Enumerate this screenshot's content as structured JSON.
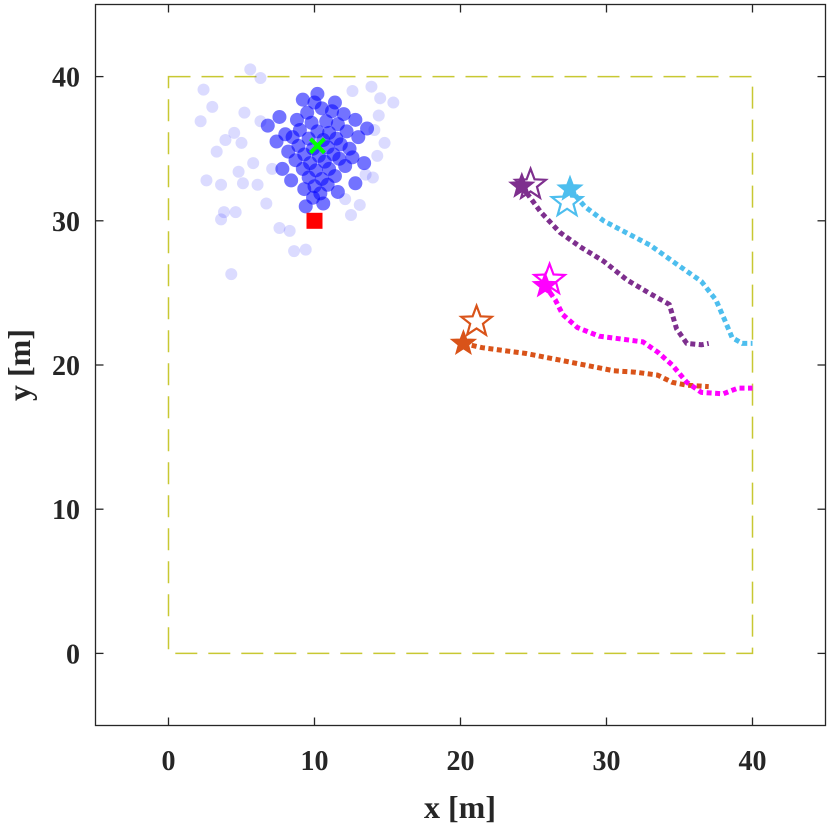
{
  "chart_data": {
    "type": "scatter",
    "xlabel": "x [m]",
    "ylabel": "y [m]",
    "xlim": [
      -5,
      45
    ],
    "ylim": [
      -5,
      45
    ],
    "xticks": [
      0,
      10,
      20,
      30,
      40
    ],
    "yticks": [
      0,
      10,
      20,
      30,
      40
    ],
    "grid": false,
    "boundary": {
      "x": [
        0,
        40
      ],
      "y": [
        0,
        40
      ],
      "color": "#C8C832",
      "style": "dashed"
    },
    "particle_cloud": {
      "color": "#0000FF",
      "center": [
        10.3,
        35.2
      ],
      "dense_points": [
        [
          10.0,
          38.2
        ],
        [
          10.5,
          37.8
        ],
        [
          9.5,
          37.5
        ],
        [
          11.2,
          37.6
        ],
        [
          8.8,
          37.0
        ],
        [
          9.8,
          36.8
        ],
        [
          10.8,
          36.9
        ],
        [
          11.6,
          36.7
        ],
        [
          9.0,
          36.3
        ],
        [
          10.2,
          36.2
        ],
        [
          11.0,
          36.1
        ],
        [
          8.5,
          35.8
        ],
        [
          9.6,
          35.7
        ],
        [
          10.6,
          35.6
        ],
        [
          11.5,
          35.7
        ],
        [
          8.9,
          35.2
        ],
        [
          9.9,
          35.0
        ],
        [
          10.9,
          35.1
        ],
        [
          11.8,
          35.3
        ],
        [
          9.3,
          34.6
        ],
        [
          10.3,
          34.5
        ],
        [
          11.3,
          34.6
        ],
        [
          8.7,
          34.2
        ],
        [
          9.7,
          34.0
        ],
        [
          10.7,
          34.1
        ],
        [
          11.7,
          34.3
        ],
        [
          9.2,
          33.6
        ],
        [
          10.1,
          33.5
        ],
        [
          11.0,
          33.6
        ],
        [
          9.6,
          33.0
        ],
        [
          10.5,
          32.9
        ],
        [
          11.4,
          33.1
        ],
        [
          10.0,
          32.4
        ],
        [
          10.9,
          32.5
        ],
        [
          9.3,
          32.2
        ],
        [
          10.4,
          31.9
        ],
        [
          11.6,
          32.0
        ],
        [
          9.9,
          31.6
        ],
        [
          12.2,
          36.2
        ],
        [
          12.4,
          35.0
        ],
        [
          12.1,
          33.8
        ],
        [
          8.0,
          36.0
        ],
        [
          8.2,
          34.8
        ],
        [
          7.8,
          33.6
        ],
        [
          12.8,
          37.0
        ],
        [
          13.0,
          35.8
        ],
        [
          12.6,
          34.4
        ],
        [
          7.4,
          35.5
        ],
        [
          7.6,
          37.2
        ],
        [
          13.4,
          34.0
        ],
        [
          10.2,
          38.8
        ],
        [
          9.2,
          38.4
        ],
        [
          11.4,
          38.2
        ],
        [
          12.0,
          37.4
        ],
        [
          8.4,
          32.8
        ],
        [
          12.8,
          32.6
        ],
        [
          10.6,
          31.2
        ],
        [
          9.4,
          31.0
        ],
        [
          6.8,
          36.6
        ],
        [
          13.6,
          36.4
        ]
      ],
      "scattered_points": [
        [
          5.6,
          40.5
        ],
        [
          6.3,
          39.9
        ],
        [
          2.4,
          39.1
        ],
        [
          3.0,
          37.9
        ],
        [
          4.5,
          36.1
        ],
        [
          5.0,
          35.4
        ],
        [
          3.3,
          34.8
        ],
        [
          2.6,
          32.8
        ],
        [
          3.6,
          32.5
        ],
        [
          5.1,
          32.6
        ],
        [
          3.8,
          30.6
        ],
        [
          3.6,
          30.1
        ],
        [
          4.6,
          30.6
        ],
        [
          6.1,
          32.5
        ],
        [
          7.1,
          33.6
        ],
        [
          8.3,
          29.3
        ],
        [
          8.6,
          27.9
        ],
        [
          9.4,
          28.0
        ],
        [
          4.3,
          26.3
        ],
        [
          12.6,
          39.0
        ],
        [
          13.9,
          39.3
        ],
        [
          14.5,
          38.5
        ],
        [
          15.4,
          38.2
        ],
        [
          14.4,
          37.3
        ],
        [
          14.1,
          36.3
        ],
        [
          14.8,
          35.4
        ],
        [
          14.3,
          34.5
        ],
        [
          13.5,
          33.2
        ],
        [
          12.1,
          31.5
        ],
        [
          13.1,
          31.1
        ],
        [
          7.6,
          29.5
        ],
        [
          6.7,
          31.2
        ],
        [
          5.8,
          34.0
        ],
        [
          4.8,
          33.4
        ],
        [
          6.3,
          36.9
        ],
        [
          5.2,
          37.5
        ],
        [
          2.2,
          36.9
        ],
        [
          3.9,
          35.6
        ],
        [
          12.5,
          30.4
        ],
        [
          14.0,
          33.0
        ]
      ]
    },
    "estimate_marker": {
      "x": 10.2,
      "y": 35.2,
      "color": "#00FF00",
      "shape": "x"
    },
    "source_marker": {
      "x": 10.0,
      "y": 30.0,
      "color": "#FF0000",
      "shape": "square"
    },
    "series": [
      {
        "color": "#D95319",
        "start": [
          20.2,
          21.5
        ],
        "goal": [
          21.1,
          23.0
        ],
        "path": [
          [
            20.2,
            21.5
          ],
          [
            21.5,
            21.2
          ],
          [
            23.0,
            21.0
          ],
          [
            24.5,
            20.8
          ],
          [
            26.0,
            20.5
          ],
          [
            27.5,
            20.2
          ],
          [
            29.0,
            19.9
          ],
          [
            30.5,
            19.6
          ],
          [
            32.0,
            19.5
          ],
          [
            33.5,
            19.3
          ],
          [
            34.5,
            18.8
          ],
          [
            35.5,
            18.6
          ],
          [
            37.0,
            18.5
          ]
        ]
      },
      {
        "color": "#FF00FF",
        "start": [
          25.8,
          25.5
        ],
        "goal": [
          26.1,
          25.9
        ],
        "path": [
          [
            25.8,
            25.5
          ],
          [
            26.5,
            24.5
          ],
          [
            27.0,
            23.5
          ],
          [
            28.0,
            22.6
          ],
          [
            29.5,
            22.0
          ],
          [
            31.0,
            21.8
          ],
          [
            32.5,
            21.6
          ],
          [
            33.5,
            20.9
          ],
          [
            34.5,
            20.0
          ],
          [
            35.5,
            18.8
          ],
          [
            36.5,
            18.1
          ],
          [
            38.0,
            18.0
          ],
          [
            39.0,
            18.4
          ],
          [
            40.0,
            18.4
          ]
        ]
      },
      {
        "color": "#7E2F8E",
        "start": [
          24.2,
          32.4
        ],
        "goal": [
          24.8,
          32.5
        ],
        "path": [
          [
            24.2,
            32.4
          ],
          [
            25.5,
            30.6
          ],
          [
            26.8,
            29.2
          ],
          [
            28.2,
            28.2
          ],
          [
            29.8,
            27.2
          ],
          [
            31.4,
            25.9
          ],
          [
            32.9,
            25.0
          ],
          [
            34.3,
            24.2
          ],
          [
            34.8,
            22.5
          ],
          [
            35.5,
            21.5
          ],
          [
            36.5,
            21.4
          ],
          [
            37.0,
            21.5
          ]
        ]
      },
      {
        "color": "#4DBEEE",
        "start": [
          27.5,
          32.2
        ],
        "goal": [
          27.3,
          31.3
        ],
        "path": [
          [
            27.5,
            32.2
          ],
          [
            28.5,
            31.0
          ],
          [
            29.8,
            30.0
          ],
          [
            31.3,
            29.2
          ],
          [
            33.0,
            28.3
          ],
          [
            34.8,
            27.0
          ],
          [
            36.5,
            25.8
          ],
          [
            37.5,
            24.5
          ],
          [
            38.1,
            23.1
          ],
          [
            38.6,
            21.9
          ],
          [
            39.3,
            21.5
          ],
          [
            40.0,
            21.5
          ]
        ]
      }
    ]
  }
}
